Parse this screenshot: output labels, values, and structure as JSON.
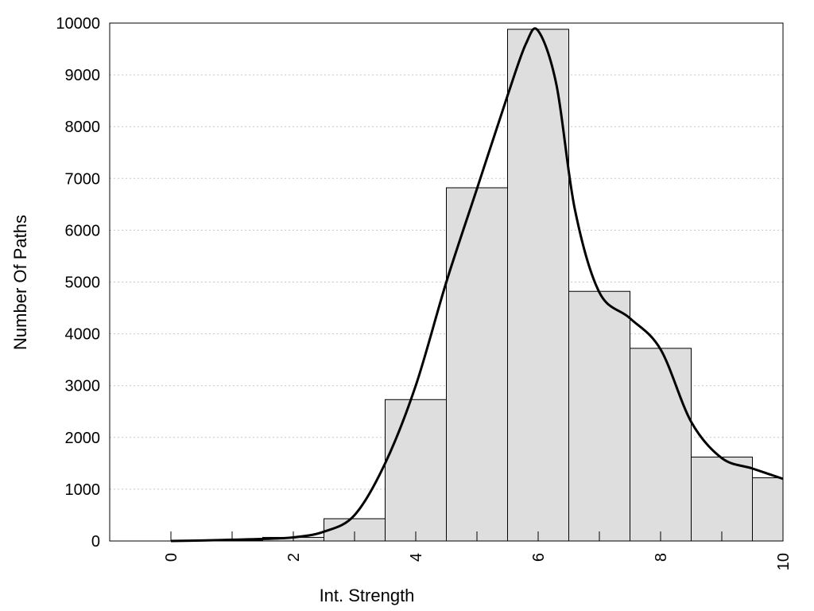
{
  "chart_data": {
    "type": "bar",
    "xlabel": "Int. Strength",
    "ylabel": "Number Of Paths",
    "xlim": [
      -1,
      10
    ],
    "ylim": [
      0,
      10000
    ],
    "x_ticks": [
      "0",
      "2",
      "4",
      "6",
      "8",
      "10"
    ],
    "y_ticks": [
      "0",
      "1000",
      "2000",
      "3000",
      "4000",
      "5000",
      "6000",
      "7000",
      "8000",
      "9000",
      "10000"
    ],
    "grid": "horizontal-dotted",
    "bars": [
      {
        "x": 0,
        "value": 0
      },
      {
        "x": 1,
        "value": 15
      },
      {
        "x": 2,
        "value": 70
      },
      {
        "x": 3,
        "value": 430
      },
      {
        "x": 4,
        "value": 2730
      },
      {
        "x": 5,
        "value": 6820
      },
      {
        "x": 6,
        "value": 9880
      },
      {
        "x": 7,
        "value": 4820
      },
      {
        "x": 8,
        "value": 3720
      },
      {
        "x": 9,
        "value": 1620
      },
      {
        "x": 10,
        "value": 1220
      }
    ],
    "curve": {
      "x": [
        0,
        0.5,
        1,
        1.5,
        2,
        2.5,
        3,
        3.5,
        4,
        4.5,
        5,
        5.5,
        5.8,
        6,
        6.3,
        6.6,
        7,
        7.5,
        8,
        8.5,
        9,
        9.5,
        10
      ],
      "y": [
        0,
        10,
        25,
        40,
        70,
        180,
        500,
        1500,
        3000,
        5000,
        6800,
        8600,
        9600,
        9850,
        8800,
        6400,
        4800,
        4300,
        3700,
        2300,
        1600,
        1400,
        1200
      ]
    }
  }
}
